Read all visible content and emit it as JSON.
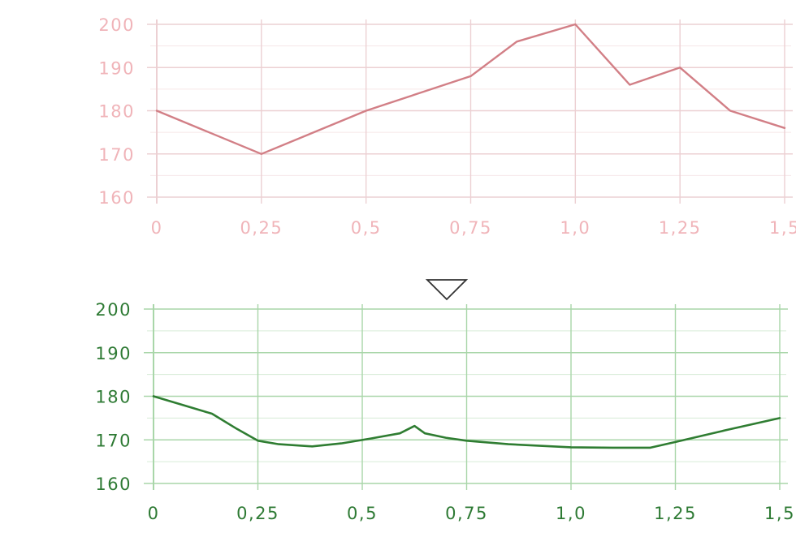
{
  "colors": {
    "top_line": "#d27f86",
    "top_text": "#f0b4b9",
    "top_grid_major": "#ecd0d3",
    "top_grid_minor": "#f6e6e8",
    "bottom_line": "#2f7d32",
    "bottom_text": "#2e7a34",
    "bottom_grid_major": "#a9d6a9",
    "bottom_grid_minor": "#d6ecd6",
    "arrow": "#333333"
  },
  "arrow_icon": "triangle-down-icon",
  "chart_data": [
    {
      "type": "line",
      "title": "",
      "xlabel": "",
      "ylabel": "",
      "xlim": [
        0,
        1.5
      ],
      "ylim": [
        160,
        200
      ],
      "grid": true,
      "x_ticks": [
        "0",
        "0,25",
        "0,5",
        "0,75",
        "1,0",
        "1,25",
        "1,5"
      ],
      "y_ticks": [
        "200",
        "190",
        "180",
        "170",
        "160"
      ],
      "series": [
        {
          "x": [
            0,
            0.25,
            0.5,
            0.75,
            0.86,
            1.0,
            1.13,
            1.25,
            1.37,
            1.5
          ],
          "y": [
            180,
            170,
            180,
            188,
            196,
            200,
            186,
            190,
            180,
            176
          ]
        }
      ]
    },
    {
      "type": "line",
      "title": "",
      "xlabel": "",
      "ylabel": "",
      "xlim": [
        0,
        1.5
      ],
      "ylim": [
        160,
        200
      ],
      "grid": true,
      "x_ticks": [
        "0",
        "0,25",
        "0,5",
        "0,75",
        "1,0",
        "1,25",
        "1,5"
      ],
      "y_ticks": [
        "200",
        "190",
        "180",
        "170",
        "160"
      ],
      "series": [
        {
          "x": [
            0,
            0.07,
            0.14,
            0.2,
            0.25,
            0.3,
            0.38,
            0.45,
            0.52,
            0.59,
            0.625,
            0.65,
            0.7,
            0.75,
            0.85,
            1.0,
            1.1,
            1.19,
            1.25,
            1.37,
            1.5
          ],
          "y": [
            180,
            178,
            176,
            172.5,
            169.8,
            169,
            168.5,
            169.2,
            170.3,
            171.5,
            173.2,
            171.5,
            170.5,
            169.8,
            169,
            168.3,
            168.2,
            168.2,
            169.5,
            172.2,
            175
          ]
        }
      ]
    }
  ]
}
